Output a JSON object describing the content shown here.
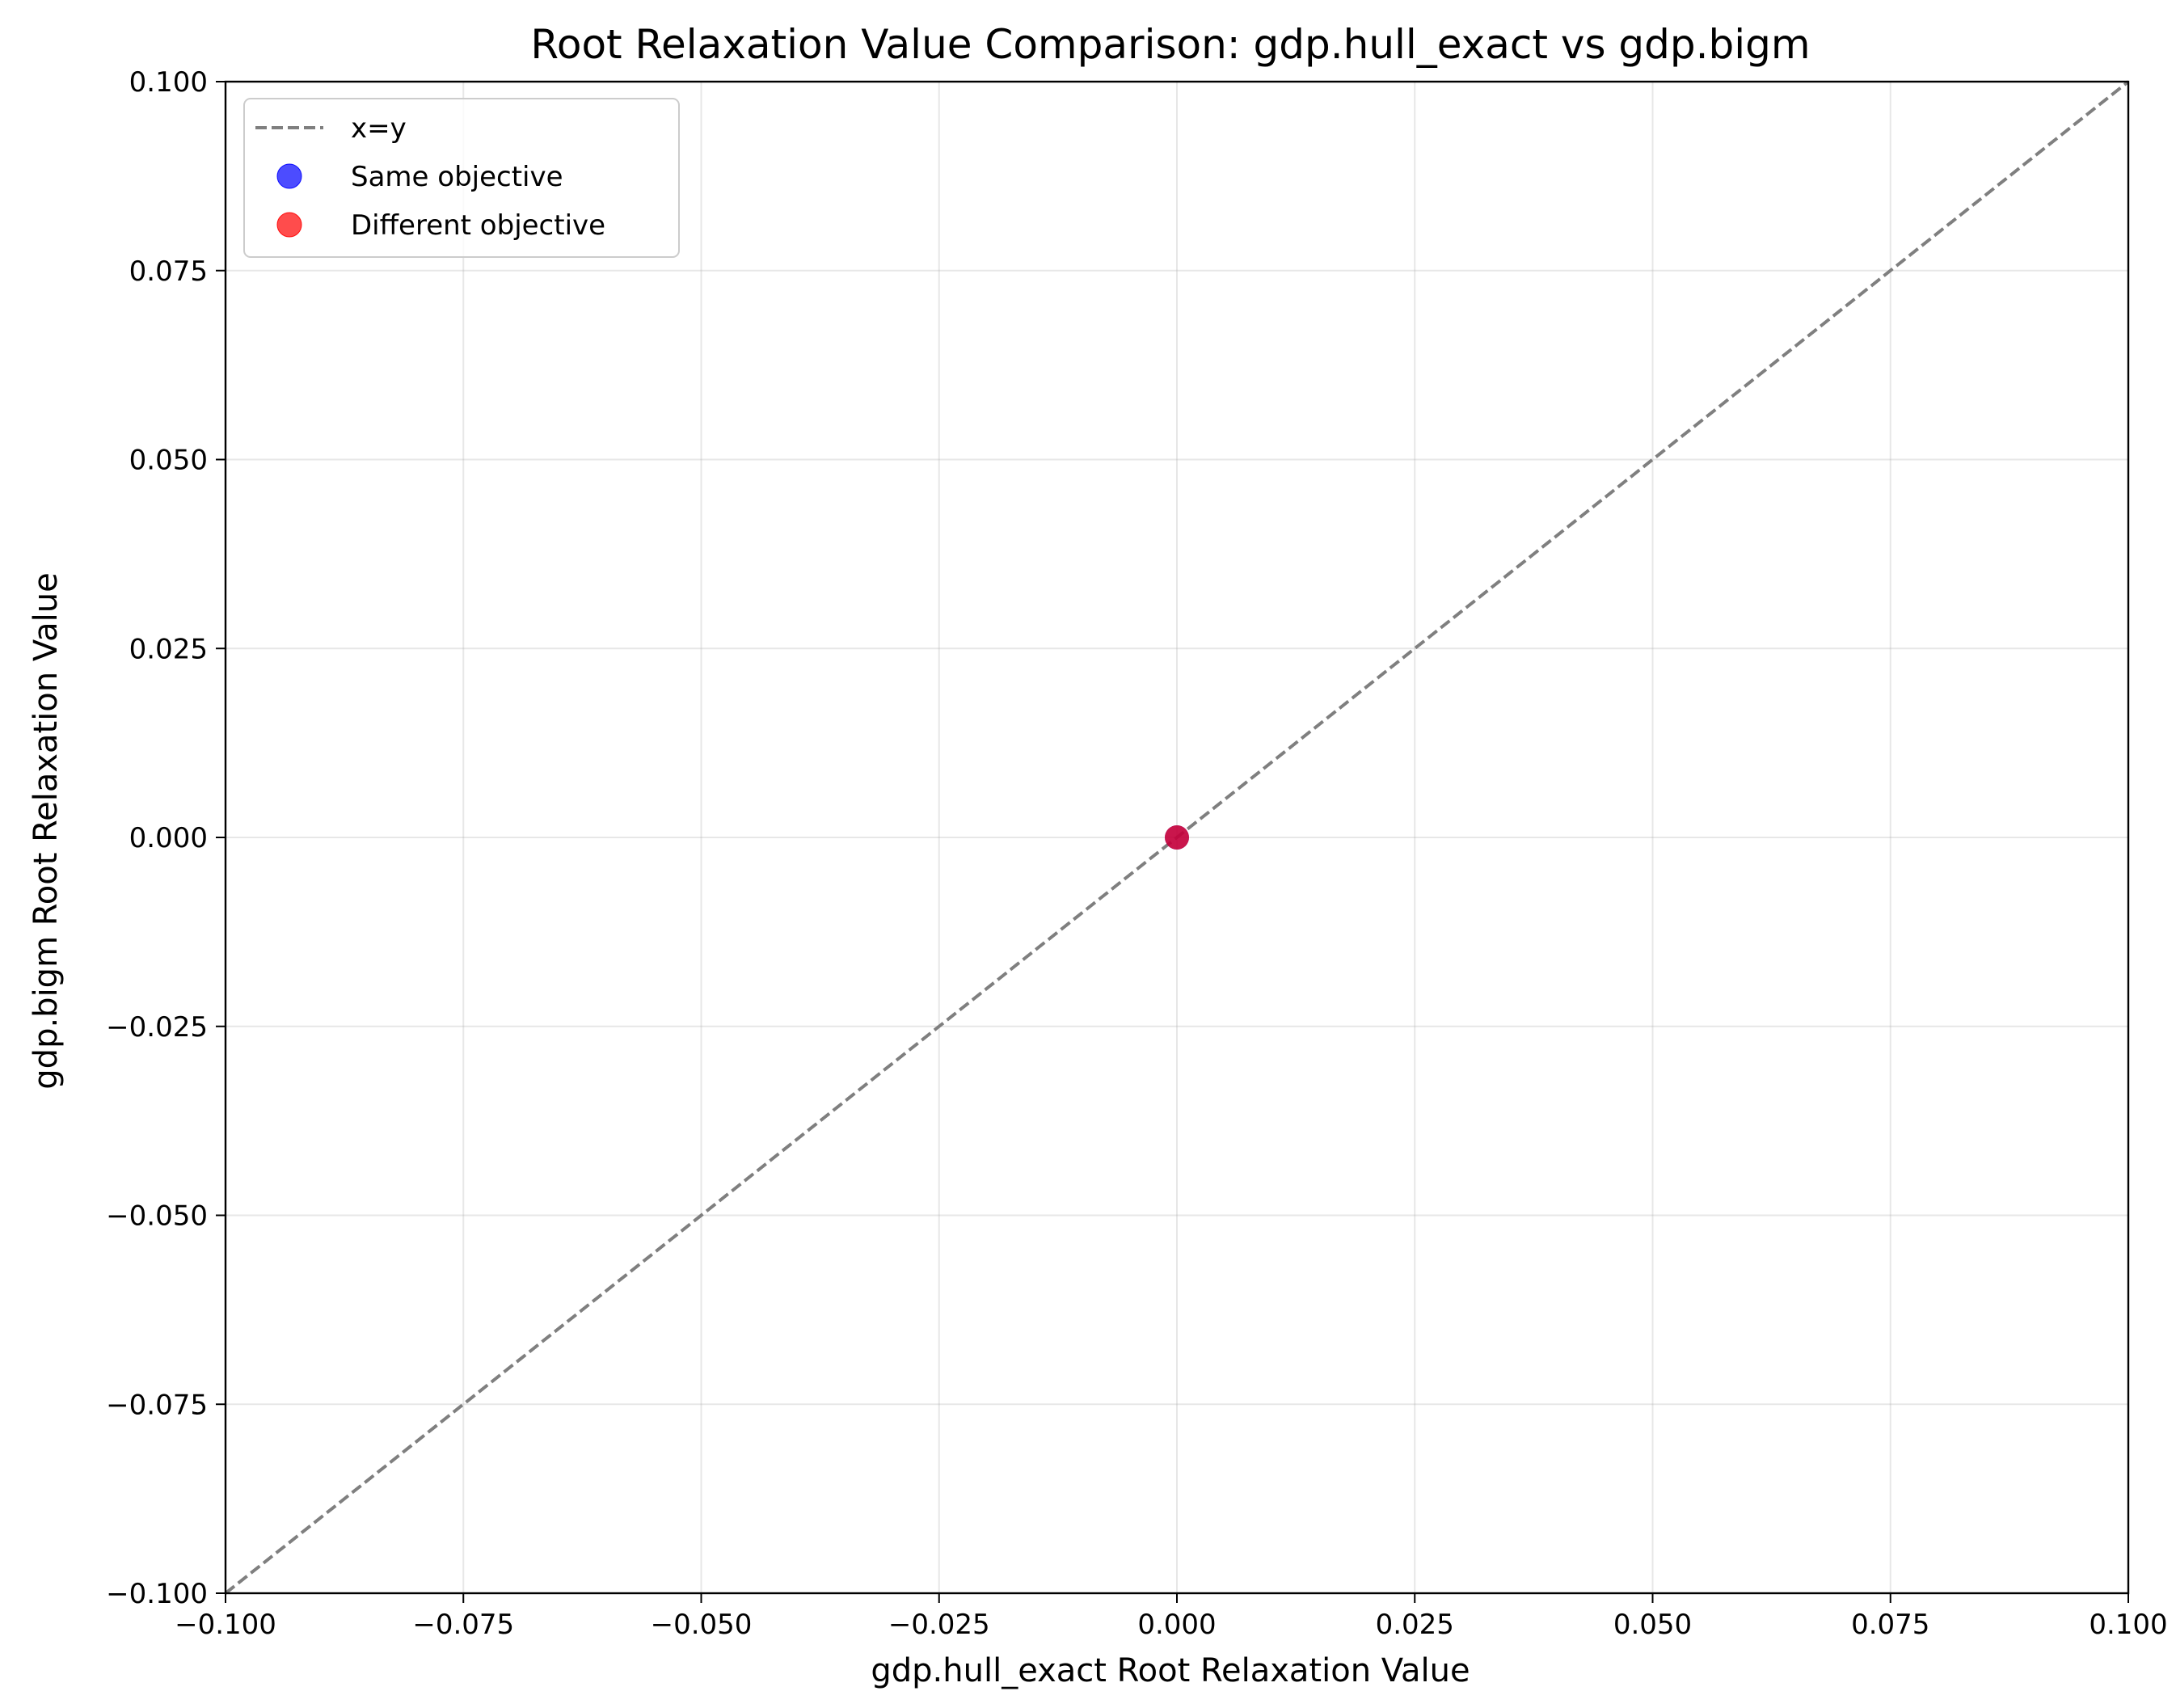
{
  "chart_data": {
    "type": "scatter",
    "title": "Root Relaxation Value Comparison: gdp.hull_exact vs gdp.bigm",
    "xlabel": "gdp.hull_exact Root Relaxation Value",
    "ylabel": "gdp.bigm Root Relaxation Value",
    "xlim": [
      -0.1,
      0.1
    ],
    "ylim": [
      -0.1,
      0.1
    ],
    "grid": true,
    "legend_position": "top-left",
    "x_ticks": [
      "−0.100",
      "−0.075",
      "−0.050",
      "−0.025",
      "0.000",
      "0.025",
      "0.050",
      "0.075",
      "0.100"
    ],
    "y_ticks": [
      "−0.100",
      "−0.075",
      "−0.050",
      "−0.025",
      "0.000",
      "0.025",
      "0.050",
      "0.075",
      "0.100"
    ],
    "tick_values": [
      -0.1,
      -0.075,
      -0.05,
      -0.025,
      0,
      0.025,
      0.05,
      0.075,
      0.1
    ],
    "reference_line": {
      "name": "x=y",
      "color": "#7f7f7f",
      "style": "dashed"
    },
    "series": [
      {
        "name": "Same objective",
        "color": "#0000ff",
        "points": [
          [
            0,
            0
          ]
        ]
      },
      {
        "name": "Different objective",
        "color": "#ff0000",
        "points": [
          [
            0,
            0
          ]
        ]
      }
    ]
  }
}
